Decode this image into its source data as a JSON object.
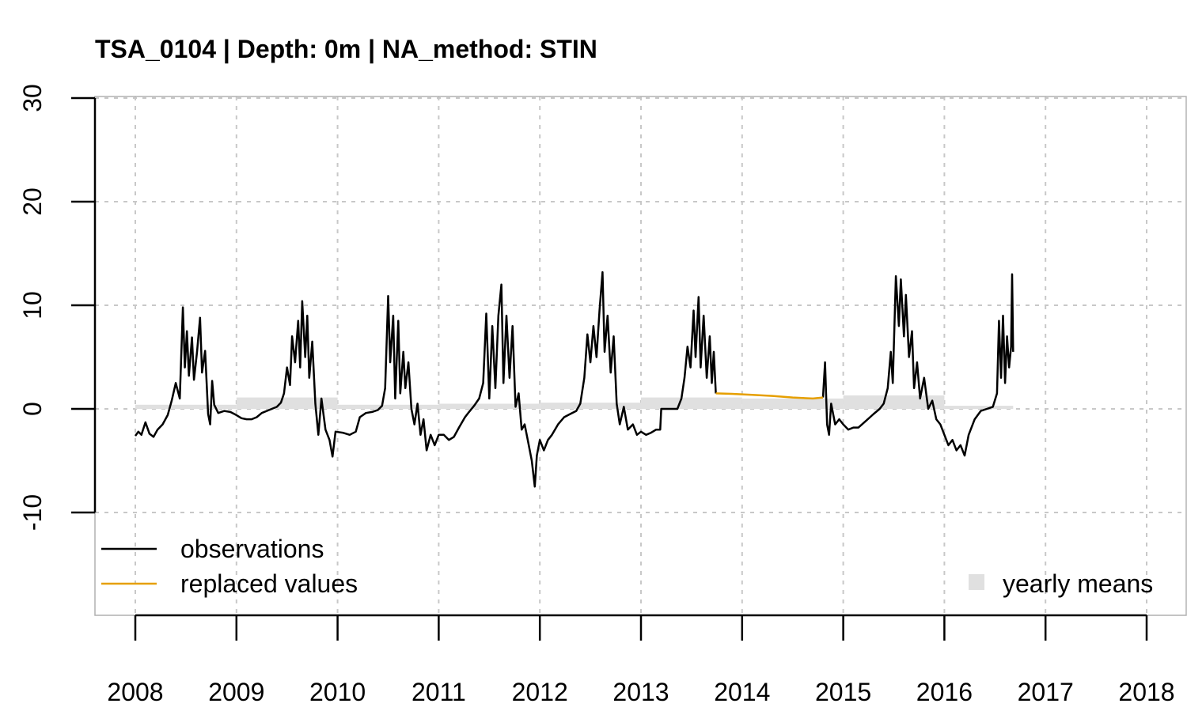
{
  "chart_data": {
    "type": "line",
    "title": "TSA_0104 | Depth: 0m | NA_method: STIN",
    "xlabel": "",
    "ylabel": "",
    "xlim": [
      2008,
      2018.05
    ],
    "ylim": [
      -20,
      30
    ],
    "x_ticks": [
      "2008",
      "2009",
      "2010",
      "2011",
      "2012",
      "2013",
      "2014",
      "2015",
      "2016",
      "2017",
      "2018"
    ],
    "y_ticks": [
      "-10",
      "0",
      "10",
      "20",
      "30"
    ],
    "grid": true,
    "legend": [
      {
        "label": "observations",
        "color": "#000000",
        "kind": "line",
        "placement": "bottom-left"
      },
      {
        "label": "replaced values",
        "color": "#e69f00",
        "kind": "line",
        "placement": "bottom-left"
      },
      {
        "label": "yearly means",
        "color": "#e0e0e0",
        "kind": "box",
        "placement": "bottom-right"
      }
    ],
    "series": [
      {
        "name": "observations",
        "color": "#000000",
        "segments": [
          [
            [
              2008.0,
              -2.6
            ],
            [
              2008.03,
              -2.2
            ],
            [
              2008.06,
              -2.5
            ],
            [
              2008.1,
              -1.3
            ],
            [
              2008.14,
              -2.4
            ],
            [
              2008.18,
              -2.7
            ],
            [
              2008.22,
              -2.0
            ],
            [
              2008.27,
              -1.5
            ],
            [
              2008.32,
              -0.6
            ],
            [
              2008.36,
              0.8
            ],
            [
              2008.4,
              2.5
            ],
            [
              2008.44,
              1.0
            ],
            [
              2008.47,
              9.8
            ],
            [
              2008.49,
              4.0
            ],
            [
              2008.51,
              7.5
            ],
            [
              2008.53,
              3.2
            ],
            [
              2008.56,
              6.9
            ],
            [
              2008.58,
              2.8
            ],
            [
              2008.61,
              5.5
            ],
            [
              2008.64,
              8.8
            ],
            [
              2008.66,
              3.5
            ],
            [
              2008.69,
              5.6
            ],
            [
              2008.72,
              -0.5
            ],
            [
              2008.74,
              -1.5
            ],
            [
              2008.76,
              2.7
            ],
            [
              2008.78,
              0.4
            ],
            [
              2008.82,
              -0.4
            ],
            [
              2008.88,
              -0.2
            ],
            [
              2008.94,
              -0.3
            ],
            [
              2009.0,
              -0.6
            ],
            [
              2009.05,
              -0.9
            ],
            [
              2009.1,
              -1.0
            ],
            [
              2009.15,
              -1.0
            ],
            [
              2009.2,
              -0.8
            ],
            [
              2009.25,
              -0.4
            ],
            [
              2009.3,
              -0.2
            ],
            [
              2009.35,
              0.0
            ],
            [
              2009.4,
              0.2
            ],
            [
              2009.44,
              0.6
            ],
            [
              2009.47,
              1.5
            ],
            [
              2009.5,
              4.0
            ],
            [
              2009.53,
              2.3
            ],
            [
              2009.55,
              7.0
            ],
            [
              2009.58,
              4.5
            ],
            [
              2009.61,
              8.5
            ],
            [
              2009.63,
              4.0
            ],
            [
              2009.65,
              10.4
            ],
            [
              2009.68,
              5.0
            ],
            [
              2009.7,
              9.0
            ],
            [
              2009.72,
              3.0
            ],
            [
              2009.75,
              6.5
            ],
            [
              2009.78,
              0.5
            ],
            [
              2009.81,
              -2.5
            ],
            [
              2009.84,
              1.0
            ],
            [
              2009.88,
              -2.0
            ],
            [
              2009.92,
              -3.0
            ],
            [
              2009.95,
              -4.6
            ],
            [
              2009.98,
              -2.2
            ],
            [
              2010.05,
              -2.3
            ],
            [
              2010.12,
              -2.5
            ],
            [
              2010.18,
              -2.2
            ],
            [
              2010.22,
              -0.8
            ],
            [
              2010.28,
              -0.4
            ],
            [
              2010.34,
              -0.3
            ],
            [
              2010.4,
              -0.1
            ],
            [
              2010.44,
              0.3
            ],
            [
              2010.47,
              2.0
            ],
            [
              2010.5,
              10.9
            ],
            [
              2010.52,
              4.5
            ],
            [
              2010.55,
              9.0
            ],
            [
              2010.57,
              1.0
            ],
            [
              2010.6,
              8.5
            ],
            [
              2010.62,
              1.5
            ],
            [
              2010.65,
              5.5
            ],
            [
              2010.67,
              2.0
            ],
            [
              2010.7,
              4.5
            ],
            [
              2010.73,
              0.0
            ],
            [
              2010.76,
              -1.5
            ],
            [
              2010.79,
              0.5
            ],
            [
              2010.82,
              -2.5
            ],
            [
              2010.85,
              -1.0
            ],
            [
              2010.88,
              -4.0
            ],
            [
              2010.92,
              -2.5
            ],
            [
              2010.96,
              -3.5
            ],
            [
              2011.0,
              -2.5
            ],
            [
              2011.05,
              -2.5
            ],
            [
              2011.1,
              -3.0
            ],
            [
              2011.15,
              -2.7
            ],
            [
              2011.2,
              -1.8
            ],
            [
              2011.26,
              -0.8
            ],
            [
              2011.3,
              -0.3
            ],
            [
              2011.35,
              0.3
            ],
            [
              2011.4,
              1.0
            ],
            [
              2011.44,
              2.5
            ],
            [
              2011.47,
              9.2
            ],
            [
              2011.5,
              1.0
            ],
            [
              2011.53,
              8.0
            ],
            [
              2011.56,
              2.0
            ],
            [
              2011.59,
              9.0
            ],
            [
              2011.62,
              12.0
            ],
            [
              2011.64,
              2.5
            ],
            [
              2011.67,
              9.0
            ],
            [
              2011.7,
              3.0
            ],
            [
              2011.73,
              8.0
            ],
            [
              2011.76,
              0.2
            ],
            [
              2011.79,
              1.5
            ],
            [
              2011.82,
              -2.0
            ],
            [
              2011.85,
              -1.5
            ],
            [
              2011.88,
              -3.0
            ],
            [
              2011.92,
              -5.0
            ],
            [
              2011.95,
              -7.5
            ],
            [
              2011.97,
              -4.5
            ],
            [
              2012.0,
              -3.0
            ],
            [
              2012.04,
              -4.0
            ],
            [
              2012.08,
              -3.0
            ],
            [
              2012.12,
              -2.5
            ],
            [
              2012.18,
              -1.5
            ],
            [
              2012.24,
              -0.8
            ],
            [
              2012.3,
              -0.5
            ],
            [
              2012.36,
              -0.2
            ],
            [
              2012.4,
              0.5
            ],
            [
              2012.44,
              3.0
            ],
            [
              2012.47,
              7.2
            ],
            [
              2012.5,
              4.5
            ],
            [
              2012.53,
              8.0
            ],
            [
              2012.56,
              5.0
            ],
            [
              2012.59,
              9.5
            ],
            [
              2012.62,
              13.2
            ],
            [
              2012.64,
              5.5
            ],
            [
              2012.67,
              9.0
            ],
            [
              2012.7,
              3.5
            ],
            [
              2012.73,
              7.0
            ],
            [
              2012.76,
              0.5
            ],
            [
              2012.79,
              -1.5
            ],
            [
              2012.83,
              0.2
            ],
            [
              2012.87,
              -2.0
            ],
            [
              2012.92,
              -1.5
            ],
            [
              2012.96,
              -2.5
            ],
            [
              2013.0,
              -2.2
            ],
            [
              2013.05,
              -2.5
            ],
            [
              2013.1,
              -2.3
            ],
            [
              2013.15,
              -2.0
            ],
            [
              2013.19,
              -2.0
            ],
            [
              2013.2,
              0.0
            ],
            [
              2013.3,
              0.0
            ],
            [
              2013.36,
              0.0
            ],
            [
              2013.4,
              1.0
            ],
            [
              2013.43,
              3.0
            ],
            [
              2013.46,
              6.0
            ],
            [
              2013.49,
              4.0
            ],
            [
              2013.52,
              9.5
            ],
            [
              2013.54,
              5.0
            ],
            [
              2013.57,
              10.8
            ],
            [
              2013.59,
              4.0
            ],
            [
              2013.62,
              9.0
            ],
            [
              2013.65,
              3.0
            ],
            [
              2013.68,
              7.0
            ],
            [
              2013.7,
              2.5
            ],
            [
              2013.72,
              5.5
            ],
            [
              2013.74,
              1.5
            ]
          ],
          [
            [
              2014.8,
              1.1
            ],
            [
              2014.82,
              4.5
            ],
            [
              2014.84,
              -1.5
            ],
            [
              2014.86,
              -2.5
            ],
            [
              2014.88,
              0.5
            ],
            [
              2014.92,
              -1.5
            ],
            [
              2014.96,
              -1.0
            ],
            [
              2015.0,
              -1.5
            ],
            [
              2015.05,
              -2.0
            ],
            [
              2015.1,
              -1.8
            ],
            [
              2015.15,
              -1.8
            ],
            [
              2015.22,
              -1.2
            ],
            [
              2015.3,
              -0.5
            ],
            [
              2015.36,
              0.0
            ],
            [
              2015.4,
              0.5
            ],
            [
              2015.44,
              2.0
            ],
            [
              2015.47,
              5.5
            ],
            [
              2015.49,
              2.5
            ],
            [
              2015.52,
              12.8
            ],
            [
              2015.55,
              8.0
            ],
            [
              2015.57,
              12.5
            ],
            [
              2015.6,
              7.0
            ],
            [
              2015.62,
              11.0
            ],
            [
              2015.65,
              5.0
            ],
            [
              2015.68,
              7.5
            ],
            [
              2015.7,
              2.0
            ],
            [
              2015.73,
              4.5
            ],
            [
              2015.76,
              1.0
            ],
            [
              2015.8,
              3.0
            ],
            [
              2015.84,
              0.0
            ],
            [
              2015.88,
              0.8
            ],
            [
              2015.92,
              -1.0
            ],
            [
              2015.96,
              -1.5
            ],
            [
              2016.0,
              -2.5
            ],
            [
              2016.04,
              -3.5
            ],
            [
              2016.08,
              -3.0
            ],
            [
              2016.12,
              -4.0
            ],
            [
              2016.16,
              -3.5
            ],
            [
              2016.2,
              -4.5
            ],
            [
              2016.24,
              -2.5
            ],
            [
              2016.3,
              -1.0
            ],
            [
              2016.36,
              -0.2
            ],
            [
              2016.42,
              0.0
            ],
            [
              2016.48,
              0.2
            ],
            [
              2016.52,
              1.5
            ],
            [
              2016.54,
              8.5
            ],
            [
              2016.56,
              3.0
            ],
            [
              2016.58,
              9.0
            ],
            [
              2016.6,
              2.5
            ],
            [
              2016.62,
              7.0
            ],
            [
              2016.64,
              4.0
            ],
            [
              2016.66,
              6.0
            ],
            [
              2016.67,
              13.0
            ],
            [
              2016.68,
              5.5
            ]
          ]
        ]
      },
      {
        "name": "replaced values",
        "color": "#e69f00",
        "segments": [
          [
            [
              2013.74,
              1.5
            ],
            [
              2013.9,
              1.45
            ],
            [
              2014.1,
              1.35
            ],
            [
              2014.3,
              1.25
            ],
            [
              2014.5,
              1.1
            ],
            [
              2014.7,
              1.0
            ],
            [
              2014.8,
              1.1
            ]
          ]
        ]
      }
    ],
    "yearly_means": {
      "color": "#e0e0e0",
      "bars": [
        {
          "x0": 2008.0,
          "x1": 2009.0,
          "value": 0.4
        },
        {
          "x0": 2009.0,
          "x1": 2010.0,
          "value": 1.1
        },
        {
          "x0": 2010.0,
          "x1": 2011.0,
          "value": 0.4
        },
        {
          "x0": 2011.0,
          "x1": 2012.0,
          "value": 0.5
        },
        {
          "x0": 2012.0,
          "x1": 2013.0,
          "value": 0.6
        },
        {
          "x0": 2013.0,
          "x1": 2014.0,
          "value": 1.1
        },
        {
          "x0": 2014.0,
          "x1": 2015.0,
          "value": 1.0
        },
        {
          "x0": 2015.0,
          "x1": 2016.0,
          "value": 1.3
        },
        {
          "x0": 2016.0,
          "x1": 2016.68,
          "value": 0.3
        }
      ]
    }
  }
}
